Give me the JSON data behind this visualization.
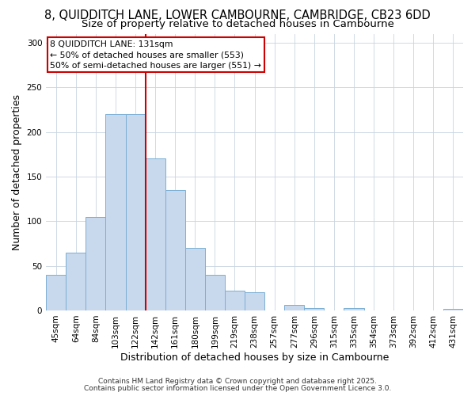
{
  "title": "8, QUIDDITCH LANE, LOWER CAMBOURNE, CAMBRIDGE, CB23 6DD",
  "subtitle": "Size of property relative to detached houses in Cambourne",
  "xlabel": "Distribution of detached houses by size in Cambourne",
  "ylabel": "Number of detached properties",
  "categories": [
    "45sqm",
    "64sqm",
    "84sqm",
    "103sqm",
    "122sqm",
    "142sqm",
    "161sqm",
    "180sqm",
    "199sqm",
    "219sqm",
    "238sqm",
    "257sqm",
    "277sqm",
    "296sqm",
    "315sqm",
    "335sqm",
    "354sqm",
    "373sqm",
    "392sqm",
    "412sqm",
    "431sqm"
  ],
  "values": [
    40,
    65,
    105,
    220,
    220,
    170,
    135,
    70,
    40,
    22,
    20,
    0,
    6,
    3,
    0,
    3,
    0,
    0,
    0,
    0,
    2
  ],
  "bar_color": "#c8d8ed",
  "bar_edge_color": "#7bafd4",
  "vline_x": 4.5,
  "vline_color": "#cc0000",
  "annotation_text": "8 QUIDDITCH LANE: 131sqm\n← 50% of detached houses are smaller (553)\n50% of semi-detached houses are larger (551) →",
  "annotation_box_color": "#ffffff",
  "annotation_box_edge": "#cc0000",
  "ylim": [
    0,
    310
  ],
  "yticks": [
    0,
    50,
    100,
    150,
    200,
    250,
    300
  ],
  "footer1": "Contains HM Land Registry data © Crown copyright and database right 2025.",
  "footer2": "Contains public sector information licensed under the Open Government Licence 3.0.",
  "background_color": "#ffffff",
  "plot_bg_color": "#ffffff",
  "grid_color": "#c8d4e0",
  "title_fontsize": 10.5,
  "subtitle_fontsize": 9.5,
  "axis_label_fontsize": 9,
  "tick_fontsize": 7.5,
  "footer_fontsize": 6.5
}
